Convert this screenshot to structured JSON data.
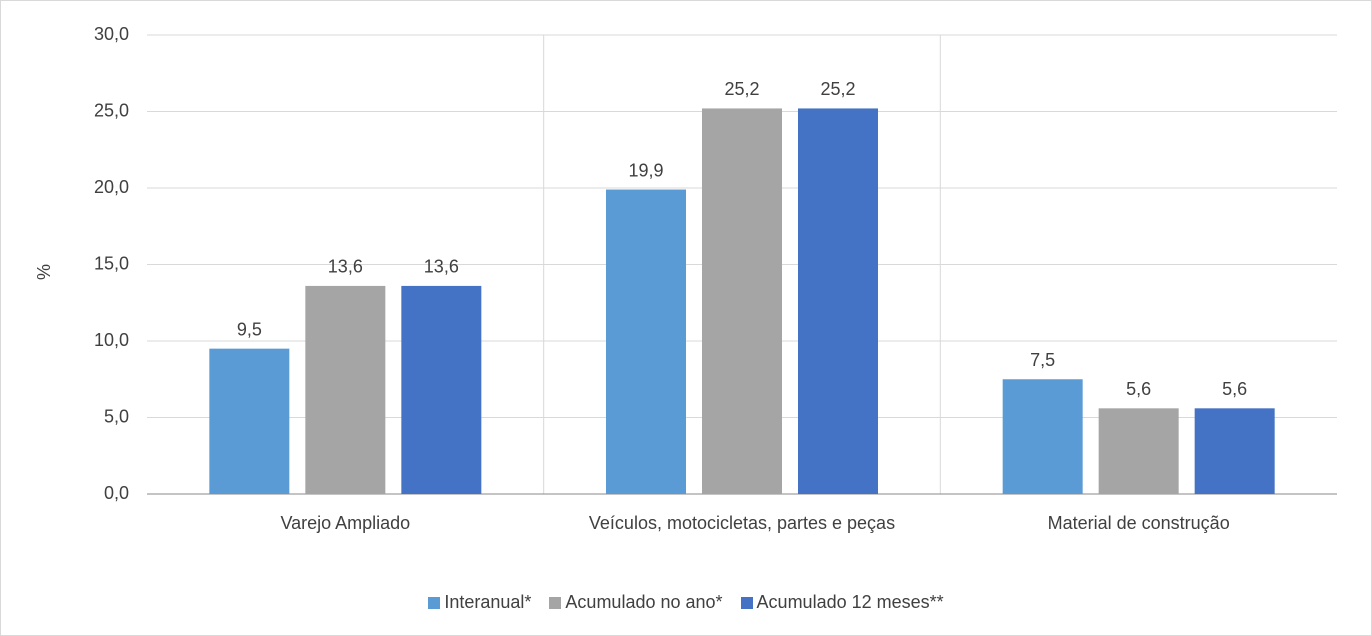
{
  "chart_data": {
    "type": "bar",
    "y_label": "%",
    "categories": [
      "Varejo Ampliado",
      "Veículos, motocicletas, partes e peças",
      "Material de construção"
    ],
    "series": [
      {
        "name": "Interanual*",
        "color": "#5b9bd5",
        "values": [
          9.5,
          19.9,
          7.5
        ],
        "value_labels": [
          "9,5",
          "19,9",
          "7,5"
        ]
      },
      {
        "name": "Acumulado no ano*",
        "color": "#a5a5a5",
        "values": [
          13.6,
          25.2,
          5.6
        ],
        "value_labels": [
          "13,6",
          "25,2",
          "5,6"
        ]
      },
      {
        "name": "Acumulado 12 meses**",
        "color": "#4472c4",
        "values": [
          13.6,
          25.2,
          5.6
        ],
        "value_labels": [
          "13,6",
          "25,2",
          "5,6"
        ]
      }
    ],
    "ylim": [
      0,
      30
    ],
    "yticks": [
      {
        "value": 0,
        "label": "0,0"
      },
      {
        "value": 5,
        "label": "5,0"
      },
      {
        "value": 10,
        "label": "10,0"
      },
      {
        "value": 15,
        "label": "15,0"
      },
      {
        "value": 20,
        "label": "20,0"
      },
      {
        "value": 25,
        "label": "25,0"
      },
      {
        "value": 30,
        "label": "30,0"
      }
    ],
    "grid": true,
    "legend": "bottom"
  }
}
